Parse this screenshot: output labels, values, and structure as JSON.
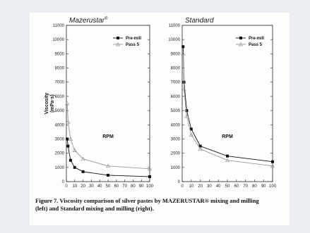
{
  "figure": {
    "caption_line1": "Figure 7.  Viscosity comparison of silver pastes by MAZERUSTAR® mixing and milling",
    "caption_line2": "(left) and Standard mixing and milling (right)."
  },
  "chart_data": [
    {
      "type": "line",
      "title": "Mazerustar",
      "title_sup": "®",
      "xlabel": "RPM",
      "ylabel": "Viscosity",
      "ylabel_unit": "(mPa·s)",
      "xlim": [
        0,
        100
      ],
      "ylim": [
        0,
        11000
      ],
      "xticks": [
        0,
        10,
        20,
        30,
        40,
        50,
        60,
        70,
        80,
        90,
        100
      ],
      "yticks": [
        0,
        1000,
        2000,
        3000,
        4000,
        5000,
        6000,
        7000,
        8000,
        9000,
        10000,
        11000
      ],
      "legend_position": "top-right",
      "series": [
        {
          "name": "Pre-mill",
          "marker": "square",
          "color": "#111111",
          "x": [
            1,
            2,
            5,
            10,
            20,
            50,
            100
          ],
          "y": [
            3000,
            2500,
            1500,
            1000,
            700,
            450,
            350
          ]
        },
        {
          "name": "Pass 5",
          "marker": "triangle",
          "color": "#9a9a9a",
          "x": [
            1,
            2,
            5,
            10,
            20,
            50,
            100
          ],
          "y": [
            5500,
            4200,
            3000,
            2200,
            1600,
            1100,
            900
          ]
        }
      ]
    },
    {
      "type": "line",
      "title": "Standard",
      "xlabel": "RPM",
      "xlim": [
        0,
        100
      ],
      "ylim": [
        0,
        11000
      ],
      "xticks": [
        0,
        10,
        20,
        30,
        40,
        50,
        60,
        70,
        80,
        90,
        100
      ],
      "yticks": [
        0,
        1000,
        2000,
        3000,
        4000,
        5000,
        6000,
        7000,
        8000,
        9000,
        10000,
        11000
      ],
      "legend_position": "top-right",
      "series": [
        {
          "name": "Pre-mill",
          "marker": "square",
          "color": "#111111",
          "x": [
            1,
            2,
            5,
            10,
            20,
            50,
            100
          ],
          "y": [
            9500,
            7000,
            5000,
            3700,
            2500,
            1800,
            1400
          ]
        },
        {
          "name": "Pass 5",
          "marker": "triangle",
          "color": "#9a9a9a",
          "x": [
            1,
            2,
            5,
            10,
            20,
            50,
            100
          ],
          "y": [
            9000,
            6500,
            4600,
            3300,
            2300,
            1500,
            1100
          ]
        }
      ]
    }
  ]
}
